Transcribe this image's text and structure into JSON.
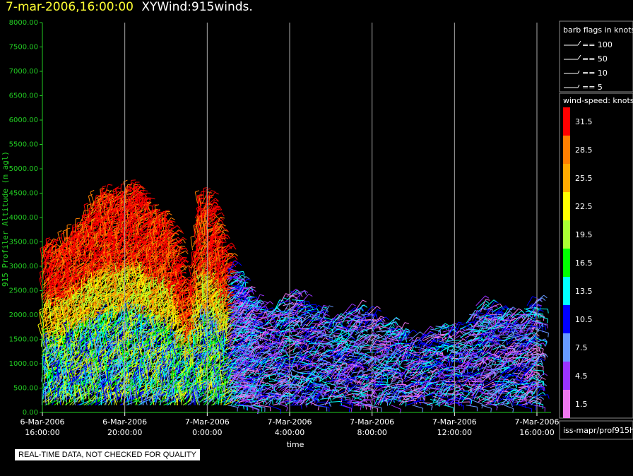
{
  "header": {
    "date": "7-mar-2006,16:00:00",
    "title": "XYWind:915winds."
  },
  "chart_data": {
    "type": "scatter",
    "subtype": "wind-barbs",
    "ylabel": "915 Profiler Altitude (m agl)",
    "xlabel": "time",
    "ylim": [
      0,
      8000
    ],
    "y_ticks": [
      "0.00",
      "500.00",
      "1000.00",
      "1500.00",
      "2000.00",
      "2500.00",
      "3000.00",
      "3500.00",
      "4000.00",
      "4500.00",
      "5000.00",
      "5500.00",
      "6000.00",
      "6500.00",
      "7000.00",
      "7500.00",
      "8000.00"
    ],
    "x_ticks": [
      {
        "date": "6-Mar-2006",
        "time": "16:00:00"
      },
      {
        "date": "6-Mar-2006",
        "time": "20:00:00"
      },
      {
        "date": "7-Mar-2006",
        "time": "0:00:00"
      },
      {
        "date": "7-Mar-2006",
        "time": "4:00:00"
      },
      {
        "date": "7-Mar-2006",
        "time": "8:00:00"
      },
      {
        "date": "7-Mar-2006",
        "time": "12:00:00"
      },
      {
        "date": "7-Mar-2006",
        "time": "16:00:00"
      }
    ],
    "xlim_hours": [
      0,
      24
    ],
    "grid": "vertical",
    "data_top_profile": [
      {
        "t": 0.0,
        "top": 3400
      },
      {
        "t": 0.5,
        "top": 3300
      },
      {
        "t": 1.0,
        "top": 3500
      },
      {
        "t": 1.5,
        "top": 3700
      },
      {
        "t": 2.0,
        "top": 4000
      },
      {
        "t": 2.5,
        "top": 4300
      },
      {
        "t": 3.0,
        "top": 4500
      },
      {
        "t": 3.5,
        "top": 4300
      },
      {
        "t": 4.0,
        "top": 4600
      },
      {
        "t": 4.5,
        "top": 4500
      },
      {
        "t": 5.0,
        "top": 4200
      },
      {
        "t": 5.5,
        "top": 4000
      },
      {
        "t": 6.0,
        "top": 3900
      },
      {
        "t": 6.5,
        "top": 3200
      },
      {
        "t": 7.0,
        "top": 2200
      },
      {
        "t": 7.5,
        "top": 4300
      },
      {
        "t": 8.0,
        "top": 4400
      },
      {
        "t": 8.5,
        "top": 3600
      },
      {
        "t": 9.0,
        "top": 3000
      },
      {
        "t": 9.5,
        "top": 2600
      },
      {
        "t": 10.0,
        "top": 2300
      },
      {
        "t": 11.0,
        "top": 2000
      },
      {
        "t": 12.0,
        "top": 2500
      },
      {
        "t": 13.0,
        "top": 2100
      },
      {
        "t": 14.0,
        "top": 1900
      },
      {
        "t": 15.0,
        "top": 2100
      },
      {
        "t": 16.0,
        "top": 2000
      },
      {
        "t": 17.0,
        "top": 1700
      },
      {
        "t": 18.0,
        "top": 1400
      },
      {
        "t": 19.0,
        "top": 1800
      },
      {
        "t": 20.0,
        "top": 1600
      },
      {
        "t": 21.0,
        "top": 2200
      },
      {
        "t": 22.0,
        "top": 2100
      },
      {
        "t": 23.0,
        "top": 2000
      },
      {
        "t": 24.0,
        "top": 2400
      }
    ],
    "wind_speed_legend": {
      "title": "wind-speed: knots",
      "entries": [
        {
          "label": "31.5",
          "color": "#ff0000"
        },
        {
          "label": "28.5",
          "color": "#ff7f00"
        },
        {
          "label": "25.5",
          "color": "#ffaa00"
        },
        {
          "label": "22.5",
          "color": "#ffff00"
        },
        {
          "label": "19.5",
          "color": "#aaff33"
        },
        {
          "label": "16.5",
          "color": "#00ff00"
        },
        {
          "label": "13.5",
          "color": "#00ffff"
        },
        {
          "label": "10.5",
          "color": "#0000ff"
        },
        {
          "label": "7.5",
          "color": "#6699ff"
        },
        {
          "label": "4.5",
          "color": "#9933ff"
        },
        {
          "label": "1.5",
          "color": "#ee77ee"
        }
      ]
    },
    "barb_legend": {
      "title": "barb flags in knots",
      "entries": [
        "== 100",
        "== 50",
        "== 10",
        "== 5"
      ]
    },
    "source_label": "iss-mapr/prof915h"
  },
  "footer": {
    "warning": "REAL-TIME DATA, NOT CHECKED FOR QUALITY"
  },
  "colors": {
    "axis": "#22cc22",
    "grid": "#aaaaaa"
  }
}
